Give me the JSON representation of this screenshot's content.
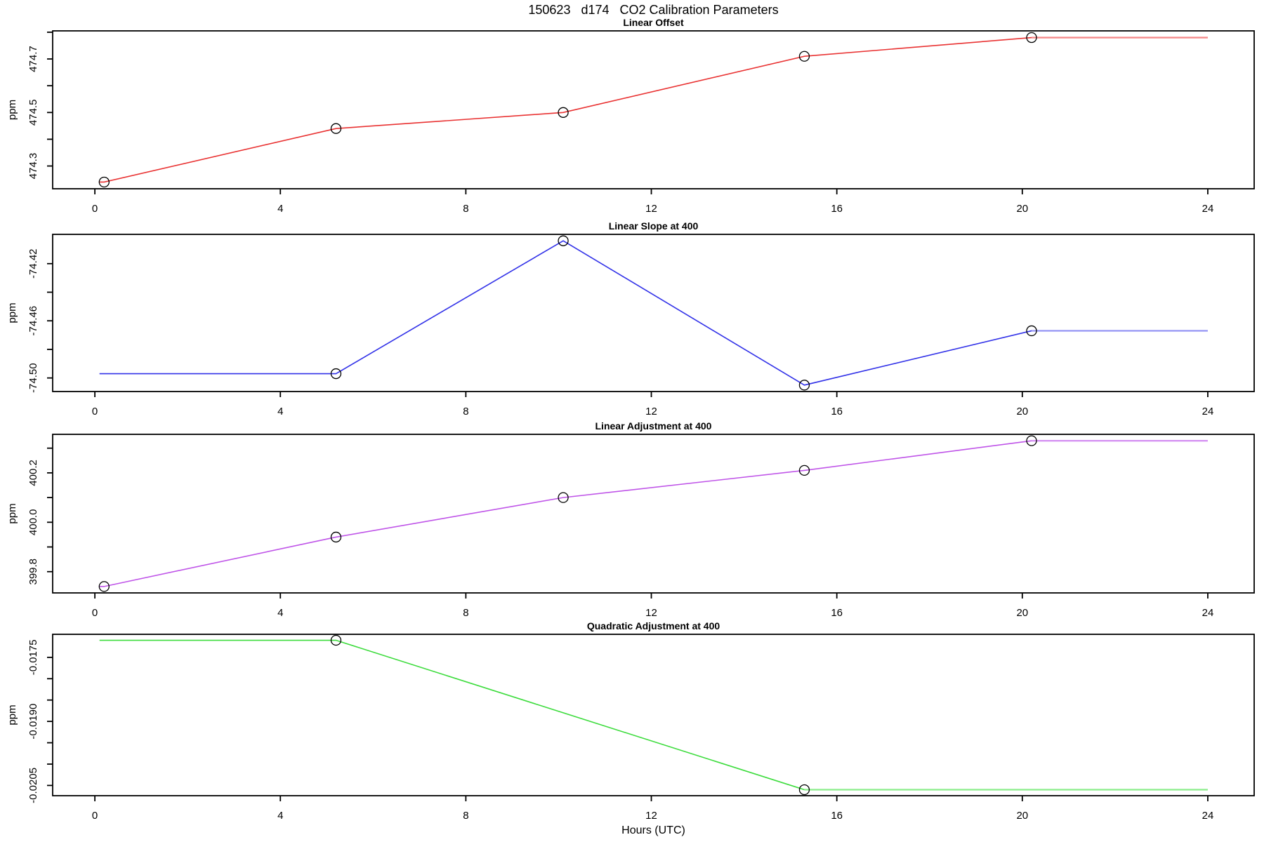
{
  "figure": {
    "title": "150623   d174   CO2 Calibration Parameters",
    "xlabel": "Hours (UTC)",
    "background": "#ffffff",
    "axis_color": "#000000"
  },
  "chart_data": [
    {
      "type": "line",
      "title": "Linear Offset",
      "ylabel": "ppm",
      "color": "#e93232",
      "tail_color": "#f58a8a",
      "marker": "open-circle",
      "points": {
        "x": [
          0.2,
          5.2,
          10.1,
          15.3,
          20.2
        ],
        "y": [
          474.24,
          474.44,
          474.5,
          474.71,
          474.78
        ]
      },
      "lead_x": 0.1,
      "tail_x": 24,
      "xlim": [
        -0.91,
        25.0
      ],
      "ylim": [
        474.215,
        474.805
      ],
      "xticks": [
        0,
        4,
        8,
        12,
        16,
        20,
        24
      ],
      "yticks": [
        474.3,
        474.4,
        474.5,
        474.6,
        474.7,
        474.8
      ],
      "ytick_labels": [
        "474.3",
        "",
        "474.5",
        "",
        "474.7",
        ""
      ]
    },
    {
      "type": "line",
      "title": "Linear Slope at 400",
      "ylabel": "ppm",
      "color": "#3232e8",
      "tail_color": "#9a9af5",
      "marker": "open-circle",
      "points": {
        "x": [
          5.2,
          10.1,
          15.3,
          20.2
        ],
        "y": [
          -74.497,
          -74.404,
          -74.505,
          -74.467
        ]
      },
      "lead_x": 0.1,
      "tail_x": 24,
      "xlim": [
        -0.91,
        25.0
      ],
      "ylim": [
        -74.5095,
        -74.3995
      ],
      "xticks": [
        0,
        4,
        8,
        12,
        16,
        20,
        24
      ],
      "yticks": [
        -74.5,
        -74.48,
        -74.46,
        -74.44,
        -74.42
      ],
      "ytick_labels": [
        "-74.50",
        "",
        "-74.46",
        "",
        "-74.42"
      ]
    },
    {
      "type": "line",
      "title": "Linear Adjustment at 400",
      "ylabel": "ppm",
      "color": "#bf54e8",
      "tail_color": "#d592f2",
      "marker": "open-circle",
      "points": {
        "x": [
          0.2,
          5.2,
          10.1,
          15.3,
          20.2
        ],
        "y": [
          399.74,
          399.94,
          400.1,
          400.21,
          400.33
        ]
      },
      "lead_x": 0.1,
      "tail_x": 24,
      "xlim": [
        -0.91,
        25.0
      ],
      "ylim": [
        399.714,
        400.356
      ],
      "xticks": [
        0,
        4,
        8,
        12,
        16,
        20,
        24
      ],
      "yticks": [
        399.8,
        399.9,
        400.0,
        400.1,
        400.2,
        400.3
      ],
      "ytick_labels": [
        "399.8",
        "",
        "400.0",
        "",
        "400.2",
        ""
      ]
    },
    {
      "type": "line",
      "title": "Quadratic Adjustment at 400",
      "ylabel": "ppm",
      "color": "#3ddc3d",
      "tail_color": "#90ee90",
      "marker": "open-circle",
      "points": {
        "x": [
          5.2,
          15.3
        ],
        "y": [
          -0.0171,
          -0.0206
        ]
      },
      "lead_x": 0.1,
      "tail_x": 24,
      "xlim": [
        -0.91,
        25.0
      ],
      "ylim": [
        -0.02074,
        -0.01696
      ],
      "xticks": [
        0,
        4,
        8,
        12,
        16,
        20,
        24
      ],
      "yticks": [
        -0.0205,
        -0.02,
        -0.0195,
        -0.019,
        -0.0185,
        -0.018,
        -0.0175
      ],
      "ytick_labels": [
        "-0.0205",
        "",
        "",
        "-0.0190",
        "",
        "",
        "-0.0175"
      ]
    }
  ]
}
